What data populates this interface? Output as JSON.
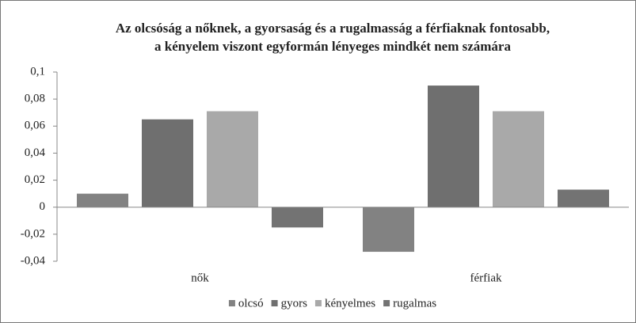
{
  "chart_data": {
    "type": "bar",
    "title": [
      "Az olcsóság a nőknek, a gyorsaság és a rugalmasság a férfiaknak fontosabb,",
      "a kényelem viszont egyformán lényeges mindkét nem számára"
    ],
    "categories": [
      "nők",
      "férfiak"
    ],
    "series": [
      {
        "name": "olcsó",
        "color": "#828282",
        "values": [
          0.01,
          -0.033
        ]
      },
      {
        "name": "gyors",
        "color": "#6f6f6f",
        "values": [
          0.065,
          0.09
        ]
      },
      {
        "name": "kényelmes",
        "color": "#a9a9a9",
        "values": [
          0.071,
          0.071
        ]
      },
      {
        "name": "rugalmas",
        "color": "#737373",
        "values": [
          -0.015,
          0.013
        ]
      }
    ],
    "ylim": [
      -0.04,
      0.1
    ],
    "yticks": [
      {
        "value": -0.04,
        "label": "-0,04"
      },
      {
        "value": -0.02,
        "label": "-0,02"
      },
      0,
      {
        "value": 0.02,
        "label": "0,02"
      },
      {
        "value": 0.04,
        "label": "0,04"
      },
      {
        "value": 0.06,
        "label": "0,06"
      },
      {
        "value": 0.08,
        "label": "0,08"
      },
      {
        "value": 0.1,
        "label": "0,1"
      }
    ],
    "legend": "bottom"
  }
}
